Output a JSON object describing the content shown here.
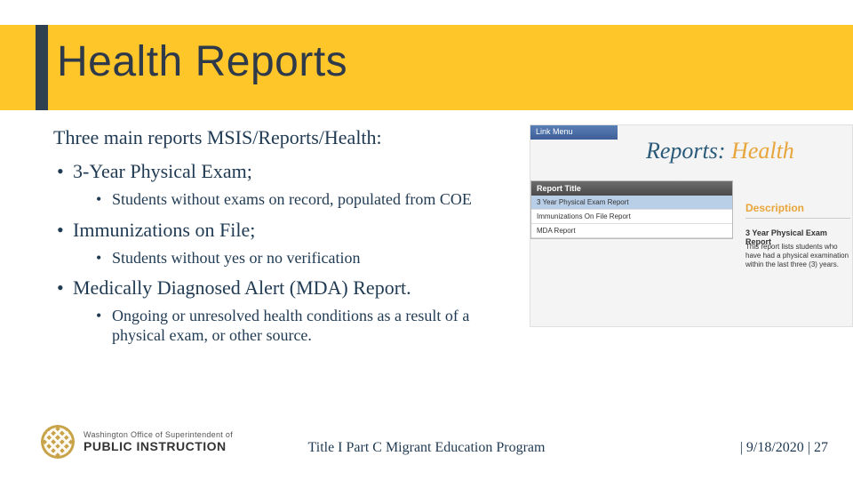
{
  "title": "Health Reports",
  "intro": "Three main reports MSIS/Reports/Health:",
  "bullets": [
    {
      "label": "3-Year Physical Exam;",
      "sub": [
        "Students without exams on record, populated from COE"
      ]
    },
    {
      "label": "Immunizations on File;",
      "sub": [
        "Students without yes or no verification"
      ]
    },
    {
      "label": "Medically Diagnosed Alert (MDA) Report.",
      "sub": [
        " Ongoing or unresolved health conditions as a result of a physical exam, or other source."
      ]
    }
  ],
  "screenshot": {
    "link_menu": "Link Menu",
    "script_prefix": "Reports: ",
    "script_suffix": "Health",
    "table_header": "Report Title",
    "rows": [
      "3 Year Physical Exam Report",
      "Immunizations On File Report",
      "MDA Report"
    ],
    "desc_label": "Description",
    "desc_title": "3 Year Physical Exam Report",
    "desc_body": "This report lists students who have had a physical examination within the last three (3) years."
  },
  "logo": {
    "top": "Washington Office of Superintendent of",
    "bottom": "PUBLIC INSTRUCTION"
  },
  "footer": {
    "center": "Title I Part C Migrant Education Program",
    "date": "9/18/2020",
    "page": "27"
  },
  "colors": {
    "accent_yellow": "#ffc629",
    "dark_side": "#2f4050",
    "text_navy": "#1f3a52",
    "orange": "#e8a53a"
  }
}
